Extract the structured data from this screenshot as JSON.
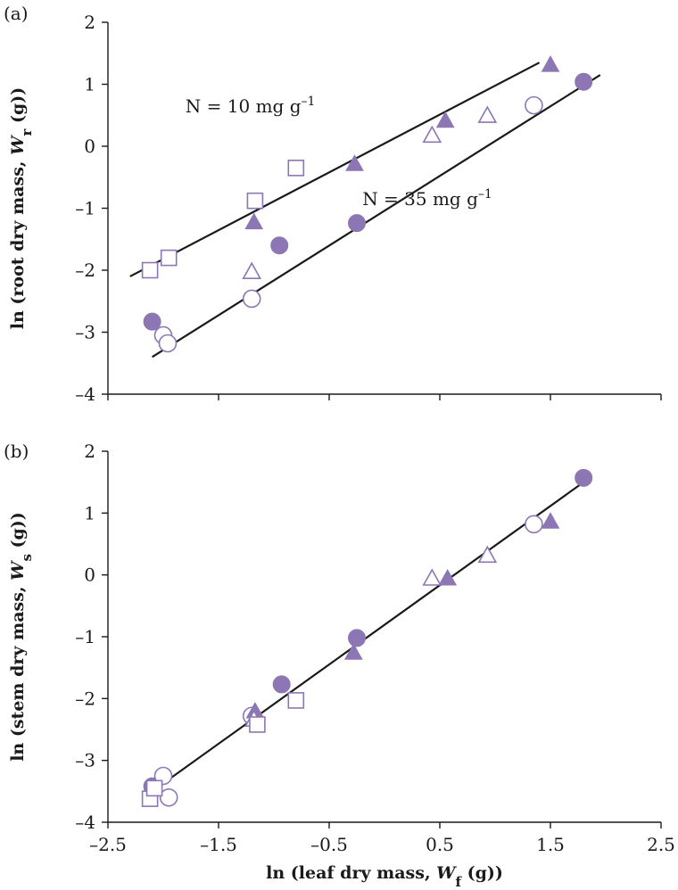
{
  "colors": {
    "filled": "#8c76b3",
    "open_stroke": "#8c76b3",
    "open_fill": "#ffffff",
    "line": "#1a1a1a"
  },
  "chart_data": [
    {
      "type": "scatter",
      "panel_label": "(a)",
      "ylabel_main": "ln (root dry mass, ",
      "ylabel_var": "W",
      "ylabel_sub": "r",
      "ylabel_tail": " (g))",
      "xlabel": "",
      "xlim": [
        -2.5,
        2.5
      ],
      "ylim": [
        -4,
        2
      ],
      "xticks": [
        "–2.5",
        "–1.5",
        "–0.5",
        "0.5",
        "1.5",
        "2.5"
      ],
      "yticks": [
        "2",
        "1",
        "0",
        "–1",
        "–2",
        "–3",
        "–4"
      ],
      "show_xtick_labels": false,
      "annotations": [
        {
          "text": "N = 10 mg g",
          "sup": "–1",
          "x": -1.8,
          "y": 0.55
        },
        {
          "text": "N = 35 mg g",
          "sup": "–1",
          "x": -0.2,
          "y": -0.95
        }
      ],
      "fit_lines": [
        {
          "x": [
            -2.3,
            1.4
          ],
          "y": [
            -2.1,
            1.35
          ]
        },
        {
          "x": [
            -2.1,
            1.95
          ],
          "y": [
            -3.4,
            1.15
          ]
        }
      ],
      "series": [
        {
          "marker": "filled-circle",
          "points": [
            [
              -2.1,
              -2.83
            ],
            [
              -0.95,
              -1.6
            ],
            [
              -0.25,
              -1.24
            ],
            [
              1.8,
              1.04
            ]
          ]
        },
        {
          "marker": "open-circle",
          "points": [
            [
              -2.0,
              -3.05
            ],
            [
              -1.96,
              -3.18
            ],
            [
              -1.2,
              -2.46
            ],
            [
              1.35,
              0.66
            ]
          ]
        },
        {
          "marker": "filled-triangle",
          "points": [
            [
              -1.18,
              -1.24
            ],
            [
              -0.27,
              -0.3
            ],
            [
              0.55,
              0.4
            ],
            [
              1.5,
              1.3
            ]
          ]
        },
        {
          "marker": "open-triangle",
          "points": [
            [
              -1.2,
              -2.04
            ],
            [
              0.43,
              0.16
            ],
            [
              0.93,
              0.48
            ]
          ]
        },
        {
          "marker": "open-square",
          "points": [
            [
              -2.12,
              -2.0
            ],
            [
              -1.95,
              -1.8
            ],
            [
              -1.17,
              -0.88
            ],
            [
              -0.8,
              -0.35
            ]
          ]
        }
      ]
    },
    {
      "type": "scatter",
      "panel_label": "(b)",
      "ylabel_main": "ln (stem dry mass, ",
      "ylabel_var": "W",
      "ylabel_sub": "s",
      "ylabel_tail": " (g))",
      "xlabel_main": "ln (leaf dry mass, ",
      "xlabel_var": "W",
      "xlabel_sub": "f",
      "xlabel_tail": " (g))",
      "xlim": [
        -2.5,
        2.5
      ],
      "ylim": [
        -4,
        2
      ],
      "xticks": [
        "–2.5",
        "–1.5",
        "–0.5",
        "0.5",
        "1.5",
        "2.5"
      ],
      "yticks": [
        "2",
        "1",
        "0",
        "–1",
        "–2",
        "–3",
        "–4"
      ],
      "show_xtick_labels": true,
      "annotations": [],
      "fit_lines": [
        {
          "x": [
            -2.1,
            1.8
          ],
          "y": [
            -3.5,
            1.5
          ]
        }
      ],
      "series": [
        {
          "marker": "filled-circle",
          "points": [
            [
              -2.1,
              -3.42
            ],
            [
              -0.93,
              -1.77
            ],
            [
              -0.25,
              -1.02
            ],
            [
              1.8,
              1.57
            ]
          ]
        },
        {
          "marker": "open-circle",
          "points": [
            [
              -2.0,
              -3.25
            ],
            [
              -1.95,
              -3.6
            ],
            [
              -1.2,
              -2.28
            ],
            [
              1.35,
              0.82
            ]
          ]
        },
        {
          "marker": "filled-triangle",
          "points": [
            [
              -1.17,
              -2.22
            ],
            [
              -0.28,
              -1.27
            ],
            [
              0.57,
              -0.07
            ],
            [
              1.5,
              0.85
            ]
          ]
        },
        {
          "marker": "open-triangle",
          "points": [
            [
              -1.18,
              -2.35
            ],
            [
              0.43,
              -0.07
            ],
            [
              0.93,
              0.3
            ]
          ]
        },
        {
          "marker": "open-square",
          "points": [
            [
              -2.12,
              -3.62
            ],
            [
              -2.08,
              -3.45
            ],
            [
              -1.15,
              -2.42
            ],
            [
              -0.8,
              -2.03
            ]
          ]
        }
      ]
    }
  ]
}
